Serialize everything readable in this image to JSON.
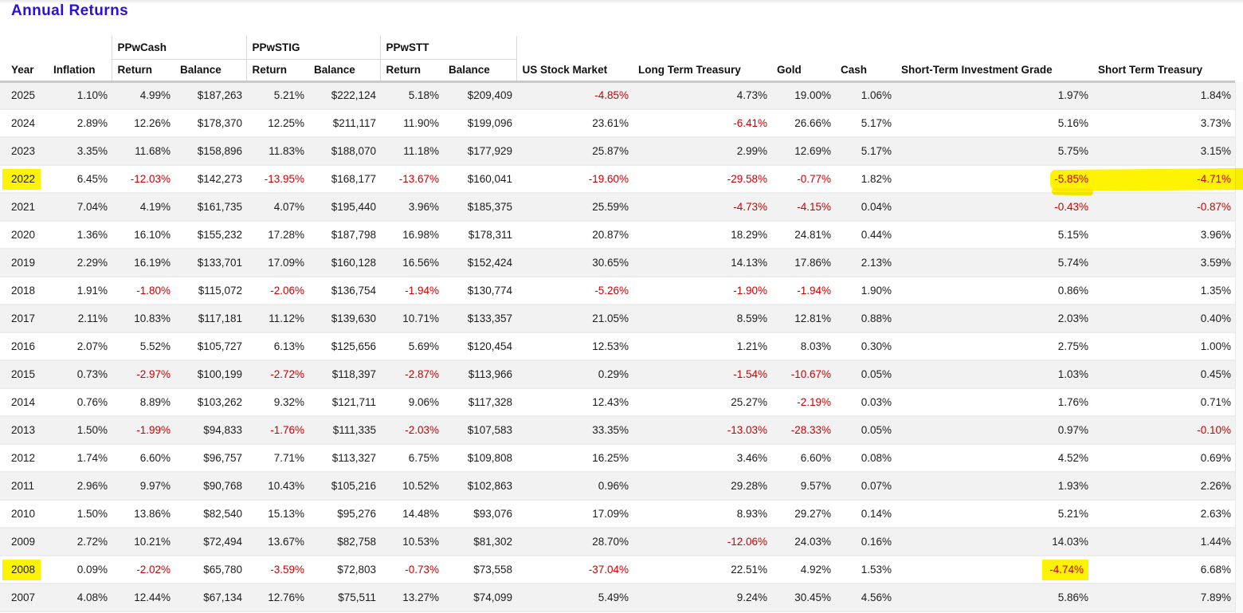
{
  "page": {
    "title": "Annual Returns"
  },
  "colors": {
    "title_blue": "#2b0fdc",
    "negative_red": "#cc0000",
    "highlight_yellow": "#fdf303",
    "row_alt_gray": "#f2f2f2"
  },
  "table": {
    "groups": [
      "PPwCash",
      "PPwSTIG",
      "PPwSTT"
    ],
    "columns": [
      "Year",
      "Inflation",
      "Return",
      "Balance",
      "Return",
      "Balance",
      "Return",
      "Balance",
      "US Stock Market",
      "Long Term Treasury",
      "Gold",
      "Cash",
      "Short-Term Investment Grade",
      "Short Term Treasury"
    ],
    "column_keys": [
      "year",
      "inflation",
      "ppwcash-return",
      "ppwcash-balance",
      "ppwstig-return",
      "ppwstig-balance",
      "ppwstt-return",
      "ppwstt-balance",
      "us-stock-market",
      "long-term-treasury",
      "gold",
      "cash",
      "short-term-investment-grade",
      "short-term-treasury"
    ],
    "rows": [
      {
        "year": "2025",
        "values": [
          "1.10%",
          "4.99%",
          "$187,263",
          "5.21%",
          "$222,124",
          "5.18%",
          "$209,409",
          "-4.85%",
          "4.73%",
          "19.00%",
          "1.06%",
          "1.97%",
          "1.84%"
        ]
      },
      {
        "year": "2024",
        "values": [
          "2.89%",
          "12.26%",
          "$178,370",
          "12.25%",
          "$211,117",
          "11.90%",
          "$199,096",
          "23.61%",
          "-6.41%",
          "26.66%",
          "5.17%",
          "5.16%",
          "3.73%"
        ]
      },
      {
        "year": "2023",
        "values": [
          "3.35%",
          "11.68%",
          "$158,896",
          "11.83%",
          "$188,070",
          "11.18%",
          "$177,929",
          "25.87%",
          "2.99%",
          "12.69%",
          "5.17%",
          "5.75%",
          "3.15%"
        ]
      },
      {
        "year": "2022",
        "values": [
          "6.45%",
          "-12.03%",
          "$142,273",
          "-13.95%",
          "$168,177",
          "-13.67%",
          "$160,041",
          "-19.60%",
          "-29.58%",
          "-0.77%",
          "1.82%",
          "-5.85%",
          "-4.71%"
        ]
      },
      {
        "year": "2021",
        "values": [
          "7.04%",
          "4.19%",
          "$161,735",
          "4.07%",
          "$195,440",
          "3.96%",
          "$185,375",
          "25.59%",
          "-4.73%",
          "-4.15%",
          "0.04%",
          "-0.43%",
          "-0.87%"
        ]
      },
      {
        "year": "2020",
        "values": [
          "1.36%",
          "16.10%",
          "$155,232",
          "17.28%",
          "$187,798",
          "16.98%",
          "$178,311",
          "20.87%",
          "18.29%",
          "24.81%",
          "0.44%",
          "5.15%",
          "3.96%"
        ]
      },
      {
        "year": "2019",
        "values": [
          "2.29%",
          "16.19%",
          "$133,701",
          "17.09%",
          "$160,128",
          "16.56%",
          "$152,424",
          "30.65%",
          "14.13%",
          "17.86%",
          "2.13%",
          "5.74%",
          "3.59%"
        ]
      },
      {
        "year": "2018",
        "values": [
          "1.91%",
          "-1.80%",
          "$115,072",
          "-2.06%",
          "$136,754",
          "-1.94%",
          "$130,774",
          "-5.26%",
          "-1.90%",
          "-1.94%",
          "1.90%",
          "0.86%",
          "1.35%"
        ]
      },
      {
        "year": "2017",
        "values": [
          "2.11%",
          "10.83%",
          "$117,181",
          "11.12%",
          "$139,630",
          "10.71%",
          "$133,357",
          "21.05%",
          "8.59%",
          "12.81%",
          "0.88%",
          "2.03%",
          "0.40%"
        ]
      },
      {
        "year": "2016",
        "values": [
          "2.07%",
          "5.52%",
          "$105,727",
          "6.13%",
          "$125,656",
          "5.69%",
          "$120,454",
          "12.53%",
          "1.21%",
          "8.03%",
          "0.30%",
          "2.75%",
          "1.00%"
        ]
      },
      {
        "year": "2015",
        "values": [
          "0.73%",
          "-2.97%",
          "$100,199",
          "-2.72%",
          "$118,397",
          "-2.87%",
          "$113,966",
          "0.29%",
          "-1.54%",
          "-10.67%",
          "0.05%",
          "1.03%",
          "0.45%"
        ]
      },
      {
        "year": "2014",
        "values": [
          "0.76%",
          "8.89%",
          "$103,262",
          "9.32%",
          "$121,711",
          "9.06%",
          "$117,328",
          "12.43%",
          "25.27%",
          "-2.19%",
          "0.03%",
          "1.76%",
          "0.71%"
        ]
      },
      {
        "year": "2013",
        "values": [
          "1.50%",
          "-1.99%",
          "$94,833",
          "-1.76%",
          "$111,335",
          "-2.03%",
          "$107,583",
          "33.35%",
          "-13.03%",
          "-28.33%",
          "0.05%",
          "0.97%",
          "-0.10%"
        ]
      },
      {
        "year": "2012",
        "values": [
          "1.74%",
          "6.60%",
          "$96,757",
          "7.71%",
          "$113,327",
          "6.75%",
          "$109,808",
          "16.25%",
          "3.46%",
          "6.60%",
          "0.08%",
          "4.52%",
          "0.69%"
        ]
      },
      {
        "year": "2011",
        "values": [
          "2.96%",
          "9.97%",
          "$90,768",
          "10.43%",
          "$105,216",
          "10.52%",
          "$102,863",
          "0.96%",
          "29.28%",
          "9.57%",
          "0.07%",
          "1.93%",
          "2.26%"
        ]
      },
      {
        "year": "2010",
        "values": [
          "1.50%",
          "13.86%",
          "$82,540",
          "15.13%",
          "$95,276",
          "14.48%",
          "$93,076",
          "17.09%",
          "8.93%",
          "29.27%",
          "0.14%",
          "5.21%",
          "2.63%"
        ]
      },
      {
        "year": "2009",
        "values": [
          "2.72%",
          "10.21%",
          "$72,494",
          "13.67%",
          "$82,758",
          "10.53%",
          "$81,302",
          "28.70%",
          "-12.06%",
          "24.03%",
          "0.16%",
          "14.03%",
          "1.44%"
        ]
      },
      {
        "year": "2008",
        "values": [
          "0.09%",
          "-2.02%",
          "$65,780",
          "-3.59%",
          "$72,803",
          "-0.73%",
          "$73,558",
          "-37.04%",
          "22.51%",
          "4.92%",
          "1.53%",
          "-4.74%",
          "6.68%"
        ]
      },
      {
        "year": "2007",
        "values": [
          "4.08%",
          "12.44%",
          "$67,134",
          "12.76%",
          "$75,511",
          "13.27%",
          "$74,099",
          "5.49%",
          "9.24%",
          "30.45%",
          "4.56%",
          "5.86%",
          "7.89%"
        ]
      }
    ],
    "highlights": {
      "years": [
        "2022",
        "2008"
      ],
      "cells": [
        {
          "year": "2008",
          "col": 11
        }
      ],
      "marker": {
        "year": "2022",
        "columns": [
          "short-term-investment-grade",
          "short-term-treasury"
        ],
        "values": [
          "-5.85%",
          "-4.71%"
        ]
      }
    }
  }
}
